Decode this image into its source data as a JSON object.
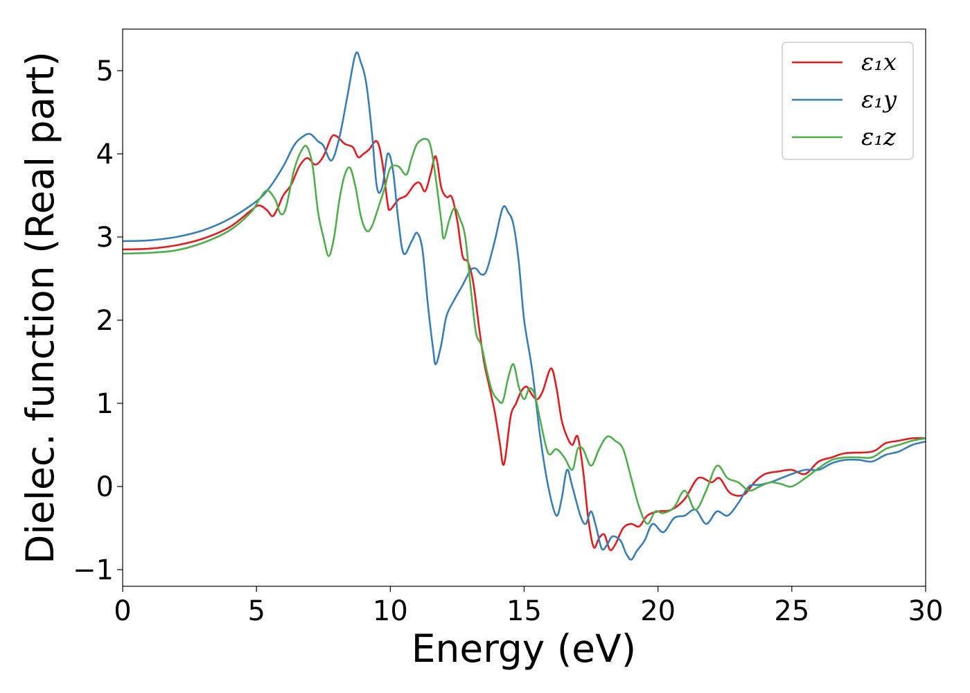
{
  "chart_data": {
    "type": "line",
    "xlabel": "Energy (eV)",
    "ylabel": "Dielec. function (Real part)",
    "xlim": [
      0,
      30
    ],
    "ylim": [
      -1.2,
      5.5
    ],
    "x_ticks": [
      0,
      5,
      10,
      15,
      20,
      25,
      30
    ],
    "x_tick_labels": [
      "0",
      "5",
      "10",
      "15",
      "20",
      "25",
      "30"
    ],
    "y_ticks": [
      -1,
      0,
      1,
      2,
      3,
      4,
      5
    ],
    "y_tick_labels": [
      "−1",
      "0",
      "1",
      "2",
      "3",
      "4",
      "5"
    ],
    "grid": false,
    "legend_position": "top-right",
    "series": [
      {
        "name": "ε₁x",
        "color": "#e41a1c",
        "points": [
          [
            0,
            2.85
          ],
          [
            1,
            2.86
          ],
          [
            2,
            2.9
          ],
          [
            3,
            2.98
          ],
          [
            4,
            3.12
          ],
          [
            4.8,
            3.32
          ],
          [
            5.1,
            3.38
          ],
          [
            5.4,
            3.32
          ],
          [
            5.6,
            3.25
          ],
          [
            5.8,
            3.35
          ],
          [
            6.0,
            3.5
          ],
          [
            6.3,
            3.63
          ],
          [
            6.6,
            3.85
          ],
          [
            6.9,
            3.95
          ],
          [
            7.2,
            3.87
          ],
          [
            7.5,
            3.97
          ],
          [
            7.8,
            4.2
          ],
          [
            8.0,
            4.21
          ],
          [
            8.3,
            4.12
          ],
          [
            8.6,
            4.08
          ],
          [
            8.8,
            3.96
          ],
          [
            9.0,
            4.0
          ],
          [
            9.2,
            4.05
          ],
          [
            9.5,
            4.15
          ],
          [
            9.7,
            3.9
          ],
          [
            9.9,
            3.4
          ],
          [
            10.0,
            3.33
          ],
          [
            10.3,
            3.45
          ],
          [
            10.6,
            3.5
          ],
          [
            10.9,
            3.63
          ],
          [
            11.1,
            3.65
          ],
          [
            11.3,
            3.55
          ],
          [
            11.5,
            3.75
          ],
          [
            11.7,
            3.97
          ],
          [
            11.9,
            3.6
          ],
          [
            12.1,
            3.48
          ],
          [
            12.3,
            3.48
          ],
          [
            12.5,
            3.2
          ],
          [
            12.7,
            2.77
          ],
          [
            12.9,
            2.7
          ],
          [
            13.1,
            2.45
          ],
          [
            13.3,
            1.95
          ],
          [
            13.5,
            1.5
          ],
          [
            13.7,
            1.2
          ],
          [
            13.9,
            0.9
          ],
          [
            14.1,
            0.5
          ],
          [
            14.2,
            0.27
          ],
          [
            14.3,
            0.35
          ],
          [
            14.5,
            0.85
          ],
          [
            14.7,
            1.0
          ],
          [
            14.9,
            1.15
          ],
          [
            15.1,
            1.2
          ],
          [
            15.3,
            1.1
          ],
          [
            15.5,
            1.05
          ],
          [
            15.7,
            1.15
          ],
          [
            16.0,
            1.42
          ],
          [
            16.2,
            1.2
          ],
          [
            16.4,
            0.8
          ],
          [
            16.6,
            0.6
          ],
          [
            16.8,
            0.5
          ],
          [
            17.0,
            0.6
          ],
          [
            17.2,
            0.2
          ],
          [
            17.4,
            -0.4
          ],
          [
            17.6,
            -0.73
          ],
          [
            17.8,
            -0.62
          ],
          [
            18.0,
            -0.58
          ],
          [
            18.2,
            -0.76
          ],
          [
            18.4,
            -0.7
          ],
          [
            18.7,
            -0.5
          ],
          [
            19.0,
            -0.45
          ],
          [
            19.3,
            -0.48
          ],
          [
            19.6,
            -0.35
          ],
          [
            20.0,
            -0.3
          ],
          [
            20.5,
            -0.28
          ],
          [
            21.0,
            -0.15
          ],
          [
            21.5,
            0.1
          ],
          [
            22.0,
            0.05
          ],
          [
            22.3,
            0.1
          ],
          [
            22.7,
            -0.08
          ],
          [
            23.2,
            -0.1
          ],
          [
            23.6,
            0.05
          ],
          [
            24.0,
            0.15
          ],
          [
            24.5,
            0.18
          ],
          [
            25.0,
            0.2
          ],
          [
            25.5,
            0.15
          ],
          [
            26.0,
            0.3
          ],
          [
            26.5,
            0.35
          ],
          [
            27.0,
            0.4
          ],
          [
            28.0,
            0.42
          ],
          [
            28.5,
            0.52
          ],
          [
            29.0,
            0.55
          ],
          [
            29.5,
            0.58
          ],
          [
            30.0,
            0.58
          ]
        ]
      },
      {
        "name": "ε₁y",
        "color": "#377eb8",
        "points": [
          [
            0,
            2.95
          ],
          [
            1,
            2.96
          ],
          [
            2,
            3.0
          ],
          [
            3,
            3.08
          ],
          [
            4,
            3.22
          ],
          [
            5,
            3.43
          ],
          [
            5.5,
            3.6
          ],
          [
            6.0,
            3.85
          ],
          [
            6.4,
            4.1
          ],
          [
            6.7,
            4.2
          ],
          [
            7.0,
            4.24
          ],
          [
            7.3,
            4.15
          ],
          [
            7.5,
            4.1
          ],
          [
            7.8,
            3.92
          ],
          [
            8.1,
            4.2
          ],
          [
            8.4,
            4.7
          ],
          [
            8.7,
            5.2
          ],
          [
            8.9,
            5.1
          ],
          [
            9.1,
            4.85
          ],
          [
            9.3,
            4.3
          ],
          [
            9.5,
            3.6
          ],
          [
            9.7,
            3.6
          ],
          [
            9.9,
            4.0
          ],
          [
            10.1,
            3.8
          ],
          [
            10.3,
            3.2
          ],
          [
            10.5,
            2.8
          ],
          [
            10.8,
            2.95
          ],
          [
            11.0,
            3.05
          ],
          [
            11.2,
            2.85
          ],
          [
            11.4,
            2.2
          ],
          [
            11.6,
            1.65
          ],
          [
            11.7,
            1.47
          ],
          [
            11.9,
            1.7
          ],
          [
            12.1,
            2.05
          ],
          [
            12.4,
            2.25
          ],
          [
            12.7,
            2.42
          ],
          [
            13.0,
            2.6
          ],
          [
            13.2,
            2.62
          ],
          [
            13.4,
            2.55
          ],
          [
            13.6,
            2.6
          ],
          [
            13.9,
            2.95
          ],
          [
            14.2,
            3.35
          ],
          [
            14.4,
            3.3
          ],
          [
            14.6,
            3.15
          ],
          [
            14.8,
            2.7
          ],
          [
            15.0,
            2.0
          ],
          [
            15.3,
            1.4
          ],
          [
            15.6,
            0.6
          ],
          [
            15.9,
            0.0
          ],
          [
            16.2,
            -0.35
          ],
          [
            16.4,
            -0.15
          ],
          [
            16.6,
            0.2
          ],
          [
            16.8,
            0.0
          ],
          [
            17.1,
            -0.35
          ],
          [
            17.3,
            -0.45
          ],
          [
            17.5,
            -0.3
          ],
          [
            17.7,
            -0.5
          ],
          [
            17.9,
            -0.75
          ],
          [
            18.1,
            -0.7
          ],
          [
            18.3,
            -0.6
          ],
          [
            18.6,
            -0.65
          ],
          [
            18.8,
            -0.8
          ],
          [
            19.0,
            -0.88
          ],
          [
            19.2,
            -0.78
          ],
          [
            19.5,
            -0.65
          ],
          [
            19.8,
            -0.45
          ],
          [
            20.2,
            -0.55
          ],
          [
            20.6,
            -0.38
          ],
          [
            21.0,
            -0.35
          ],
          [
            21.4,
            -0.28
          ],
          [
            21.8,
            -0.45
          ],
          [
            22.2,
            -0.3
          ],
          [
            22.6,
            -0.35
          ],
          [
            23.0,
            -0.2
          ],
          [
            23.4,
            0.0
          ],
          [
            23.8,
            0.02
          ],
          [
            24.2,
            0.05
          ],
          [
            24.6,
            0.1
          ],
          [
            25.0,
            0.15
          ],
          [
            25.5,
            0.2
          ],
          [
            26.0,
            0.2
          ],
          [
            26.5,
            0.28
          ],
          [
            27.0,
            0.32
          ],
          [
            27.5,
            0.32
          ],
          [
            28.0,
            0.3
          ],
          [
            28.5,
            0.38
          ],
          [
            29.0,
            0.42
          ],
          [
            29.5,
            0.5
          ],
          [
            30.0,
            0.54
          ]
        ]
      },
      {
        "name": "ε₁z",
        "color": "#4daf4a",
        "points": [
          [
            0,
            2.8
          ],
          [
            1,
            2.81
          ],
          [
            2,
            2.84
          ],
          [
            3,
            2.93
          ],
          [
            4,
            3.08
          ],
          [
            4.8,
            3.3
          ],
          [
            5.1,
            3.45
          ],
          [
            5.4,
            3.56
          ],
          [
            5.7,
            3.45
          ],
          [
            5.9,
            3.28
          ],
          [
            6.1,
            3.35
          ],
          [
            6.4,
            3.8
          ],
          [
            6.7,
            4.05
          ],
          [
            6.9,
            4.08
          ],
          [
            7.1,
            3.85
          ],
          [
            7.3,
            3.3
          ],
          [
            7.5,
            3.0
          ],
          [
            7.7,
            2.77
          ],
          [
            7.9,
            3.0
          ],
          [
            8.1,
            3.45
          ],
          [
            8.3,
            3.75
          ],
          [
            8.5,
            3.83
          ],
          [
            8.7,
            3.6
          ],
          [
            8.9,
            3.25
          ],
          [
            9.1,
            3.08
          ],
          [
            9.3,
            3.12
          ],
          [
            9.6,
            3.4
          ],
          [
            9.8,
            3.6
          ],
          [
            10.0,
            3.83
          ],
          [
            10.3,
            3.85
          ],
          [
            10.6,
            3.75
          ],
          [
            10.8,
            3.95
          ],
          [
            11.0,
            4.12
          ],
          [
            11.3,
            4.18
          ],
          [
            11.5,
            4.1
          ],
          [
            11.7,
            3.7
          ],
          [
            11.9,
            3.2
          ],
          [
            12.0,
            2.98
          ],
          [
            12.2,
            3.2
          ],
          [
            12.4,
            3.35
          ],
          [
            12.6,
            3.22
          ],
          [
            12.8,
            3.0
          ],
          [
            13.0,
            2.4
          ],
          [
            13.2,
            1.85
          ],
          [
            13.4,
            1.7
          ],
          [
            13.6,
            1.4
          ],
          [
            13.8,
            1.15
          ],
          [
            14.0,
            1.05
          ],
          [
            14.2,
            1.02
          ],
          [
            14.4,
            1.3
          ],
          [
            14.6,
            1.47
          ],
          [
            14.8,
            1.2
          ],
          [
            15.0,
            1.05
          ],
          [
            15.2,
            1.18
          ],
          [
            15.4,
            1.1
          ],
          [
            15.6,
            0.8
          ],
          [
            15.9,
            0.4
          ],
          [
            16.2,
            0.45
          ],
          [
            16.5,
            0.35
          ],
          [
            16.8,
            0.2
          ],
          [
            17.0,
            0.45
          ],
          [
            17.2,
            0.45
          ],
          [
            17.5,
            0.25
          ],
          [
            17.8,
            0.45
          ],
          [
            18.1,
            0.6
          ],
          [
            18.4,
            0.55
          ],
          [
            18.7,
            0.45
          ],
          [
            19.0,
            0.1
          ],
          [
            19.3,
            -0.25
          ],
          [
            19.6,
            -0.45
          ],
          [
            19.9,
            -0.3
          ],
          [
            20.2,
            -0.32
          ],
          [
            20.6,
            -0.25
          ],
          [
            21.0,
            -0.05
          ],
          [
            21.4,
            -0.28
          ],
          [
            21.8,
            -0.05
          ],
          [
            22.2,
            0.25
          ],
          [
            22.6,
            0.1
          ],
          [
            23.0,
            0.05
          ],
          [
            23.4,
            -0.05
          ],
          [
            23.8,
            0.0
          ],
          [
            24.2,
            0.05
          ],
          [
            24.6,
            0.03
          ],
          [
            25.0,
            0.0
          ],
          [
            25.5,
            0.1
          ],
          [
            26.0,
            0.22
          ],
          [
            26.5,
            0.32
          ],
          [
            27.0,
            0.35
          ],
          [
            27.5,
            0.35
          ],
          [
            28.0,
            0.35
          ],
          [
            28.5,
            0.45
          ],
          [
            29.0,
            0.5
          ],
          [
            29.5,
            0.55
          ],
          [
            30.0,
            0.58
          ]
        ]
      }
    ]
  }
}
